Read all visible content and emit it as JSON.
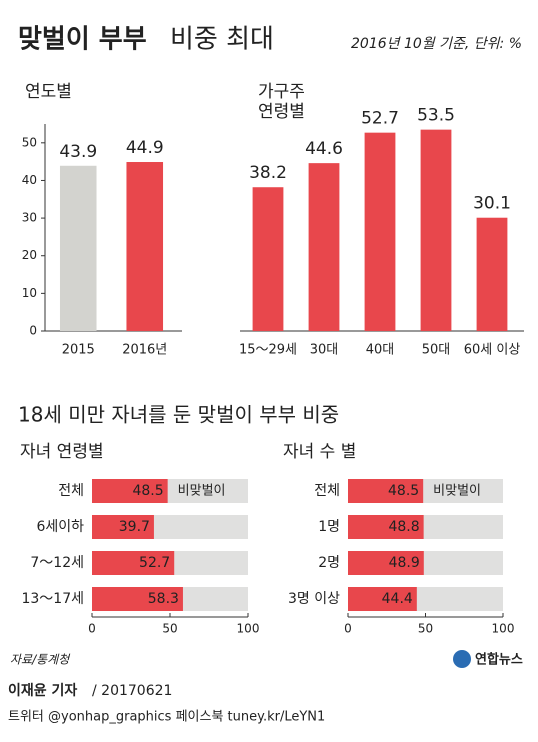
{
  "header": {
    "title_bold": "맞벌이 부부",
    "title_rest": "비중 최대",
    "subtitle": "2016년 10월 기준, 단위: %"
  },
  "section_title": "18세 미만 자녀를 둔 맞벌이 부부 비중",
  "chart_data": [
    {
      "type": "bar",
      "title": "연도별",
      "categories": [
        "2015",
        "2016년"
      ],
      "values": [
        43.9,
        44.9
      ],
      "colors": [
        "#d3d3cf",
        "#e8474c"
      ],
      "ylim": [
        0,
        55
      ],
      "yticks": [
        0,
        10,
        20,
        30,
        40,
        50
      ]
    },
    {
      "type": "bar",
      "title": [
        "가구주",
        "연령별"
      ],
      "categories": [
        "15～29세",
        "30대",
        "40대",
        "50대",
        "60세 이상"
      ],
      "values": [
        38.2,
        44.6,
        52.7,
        53.5,
        30.1
      ],
      "color": "#e8474c",
      "ylim": [
        0,
        55
      ]
    },
    {
      "type": "hbar",
      "title": "자녀 연령별",
      "categories": [
        "전체",
        "6세이하",
        "7～12세",
        "13～17세"
      ],
      "values": [
        48.5,
        39.7,
        52.7,
        58.3
      ],
      "rest_label": "비맞벌이",
      "color": "#e8474c",
      "rest_color": "#e0e0df",
      "xlim": [
        0,
        100
      ],
      "xticks": [
        0,
        50,
        100
      ]
    },
    {
      "type": "hbar",
      "title": "자녀 수 별",
      "categories": [
        "전체",
        "1명",
        "2명",
        "3명 이상"
      ],
      "values": [
        48.5,
        48.8,
        48.9,
        44.4
      ],
      "rest_label": "비맞벌이",
      "color": "#e8474c",
      "rest_color": "#e0e0df",
      "xlim": [
        0,
        100
      ],
      "xticks": [
        0,
        50,
        100
      ]
    }
  ],
  "footer": {
    "source": "자료/통계청",
    "logo": "연합뉴스",
    "byline": "이재윤 기자",
    "date": "/ 20170621",
    "social": "트위터 @yonhap_graphics  페이스북 tuney.kr/LeYN1"
  }
}
